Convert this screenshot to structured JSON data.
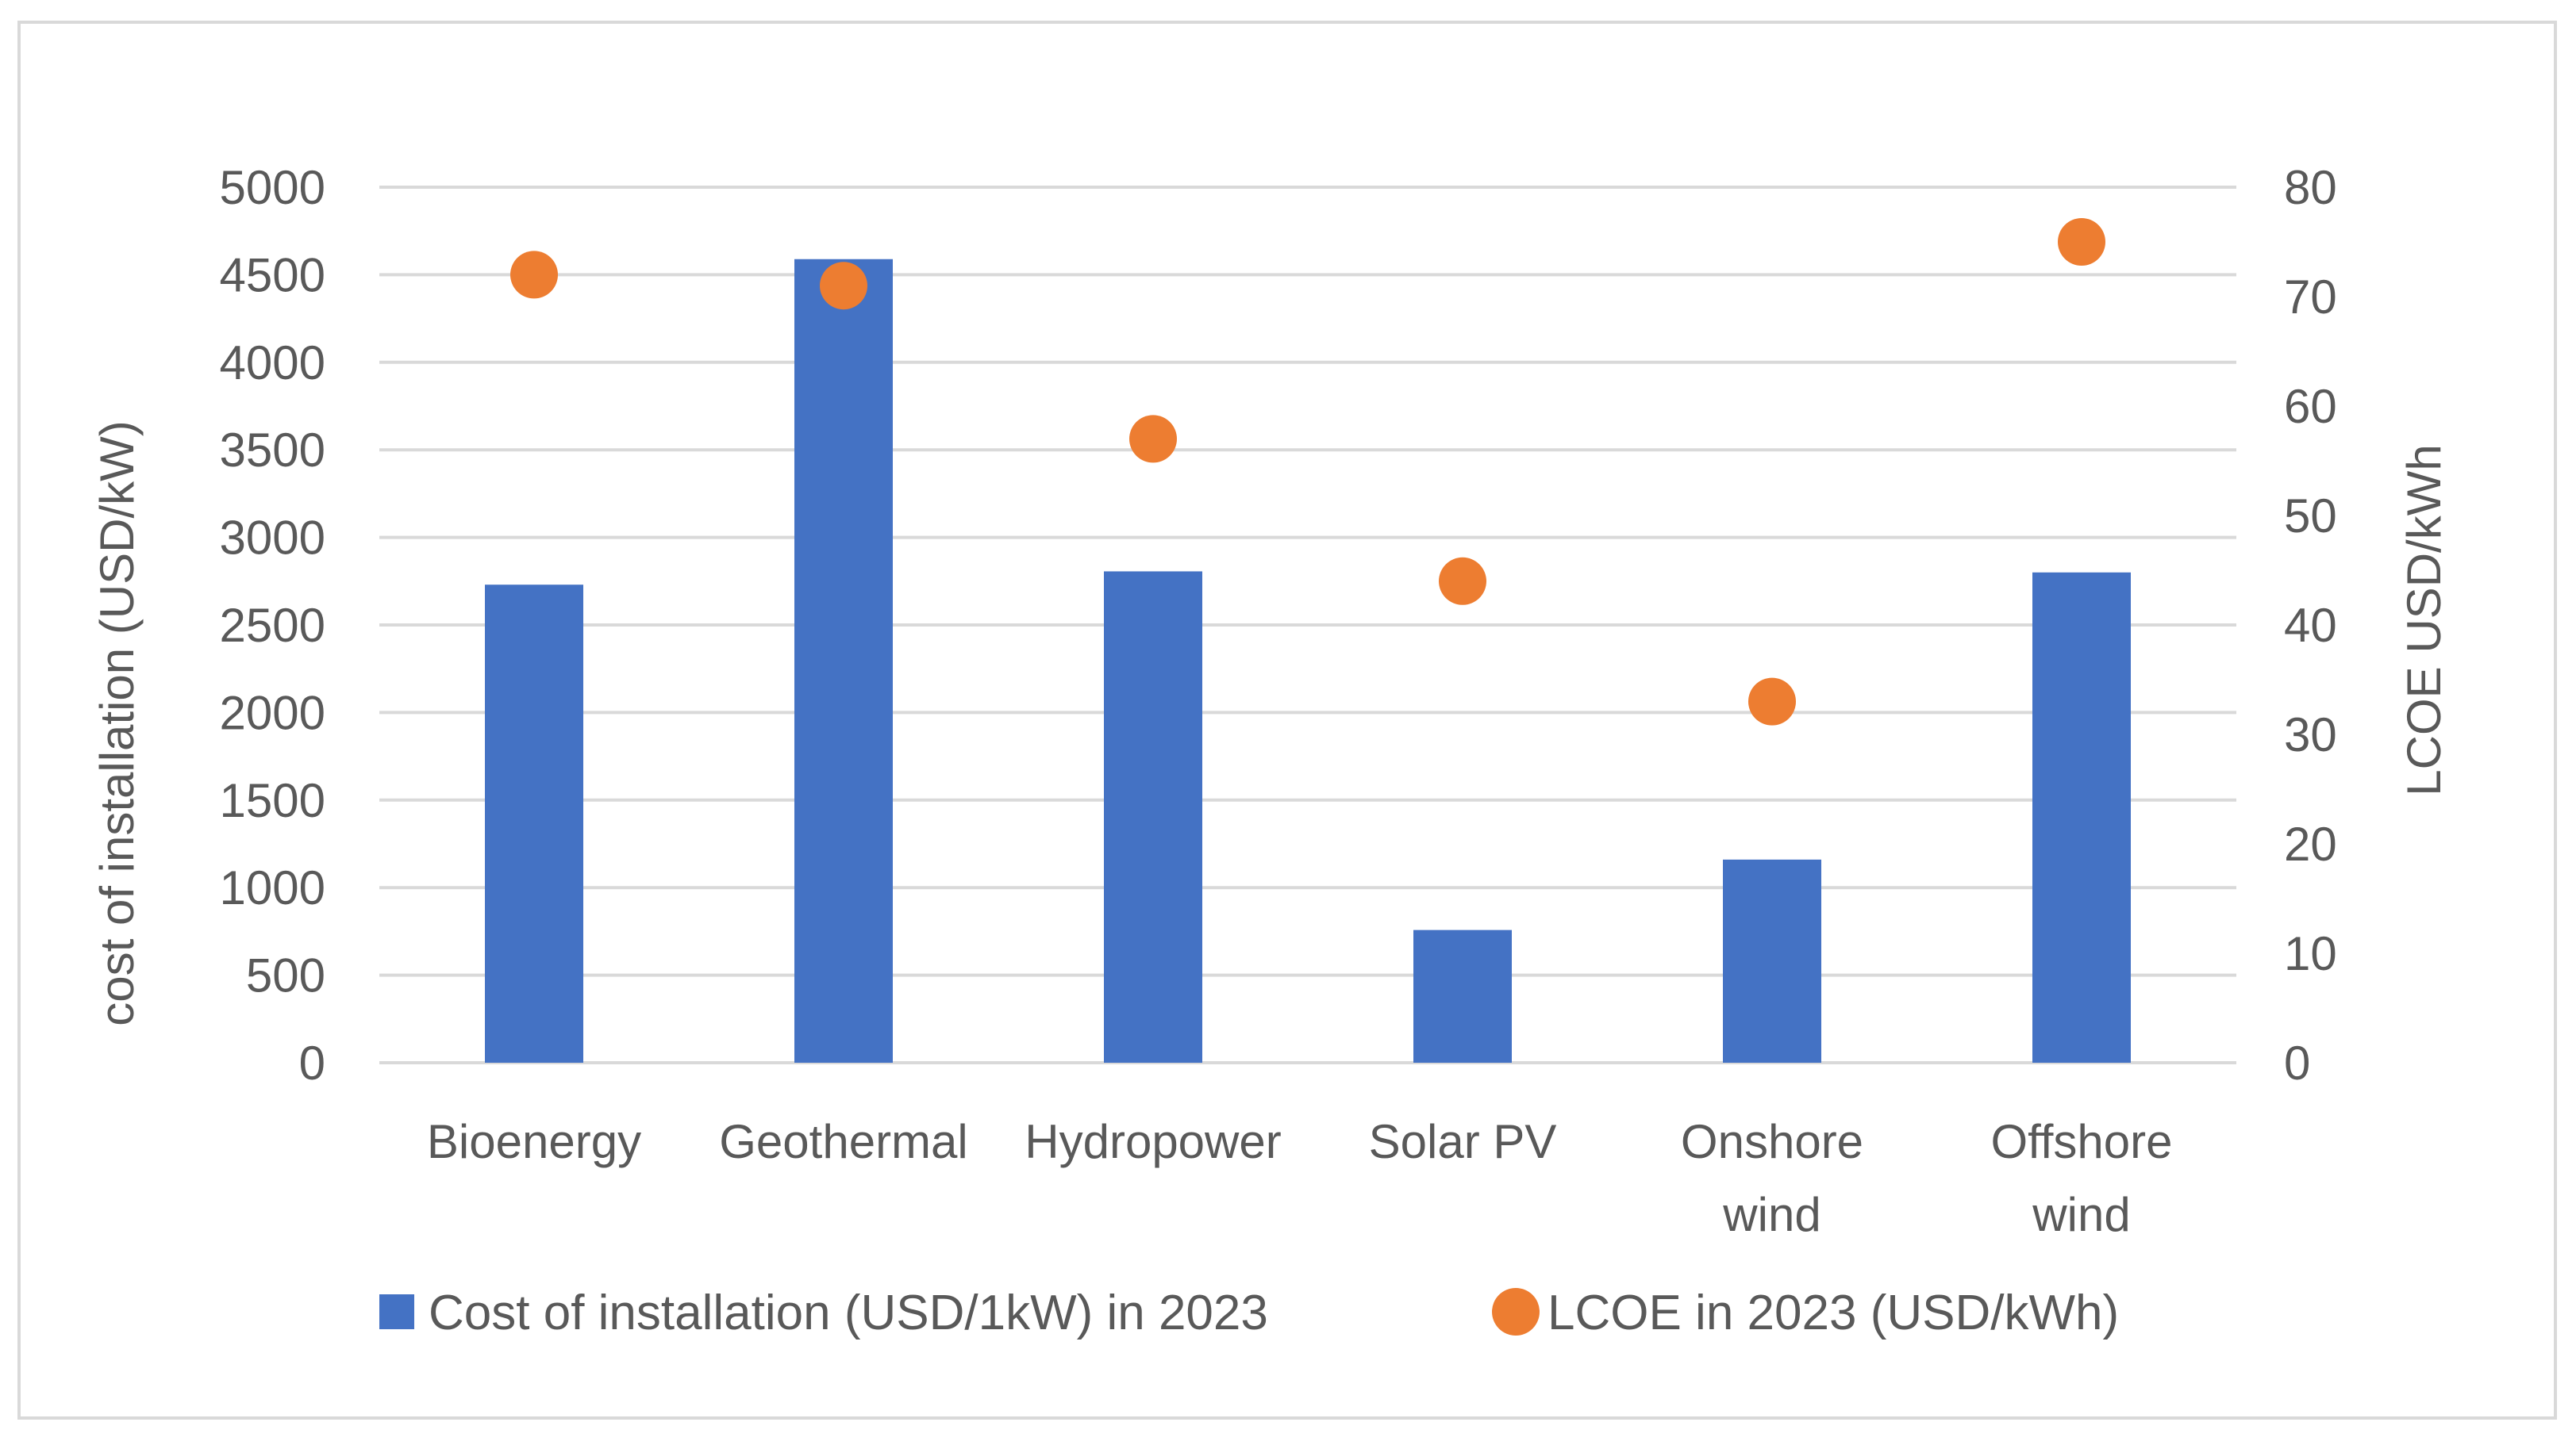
{
  "chart_data": {
    "type": "bar",
    "title": "",
    "categories": [
      [
        "Bioenergy"
      ],
      [
        "Geothermal"
      ],
      [
        "Hydropower"
      ],
      [
        "Solar PV"
      ],
      [
        "Onshore",
        "wind"
      ],
      [
        "Offshore",
        "wind"
      ]
    ],
    "series": [
      {
        "name": "Cost of installation (USD/1kW) in 2023",
        "type": "bar",
        "axis": "left",
        "color": "#4472c4",
        "values": [
          2730,
          4589,
          2806,
          758,
          1160,
          2800
        ]
      },
      {
        "name": "LCOE in 2023 (USD/kWh)",
        "type": "scatter",
        "axis": "right",
        "color": "#ed7d31",
        "values": [
          72,
          71,
          57,
          44,
          33,
          75
        ]
      }
    ],
    "ylabel": "cost of installation (USD/kW)",
    "y2label": "LCOE USD/kWh",
    "ylim": [
      0,
      5000
    ],
    "y2lim": [
      0,
      80
    ],
    "yticks": [
      "0",
      "500",
      "1000",
      "1500",
      "2000",
      "2500",
      "3000",
      "3500",
      "4000",
      "4500",
      "5000"
    ],
    "y2ticks": [
      "0",
      "10",
      "20",
      "30",
      "40",
      "50",
      "60",
      "70",
      "80"
    ],
    "grid": true,
    "gridColor": "#d9d9d9",
    "legend_position": "bottom"
  }
}
